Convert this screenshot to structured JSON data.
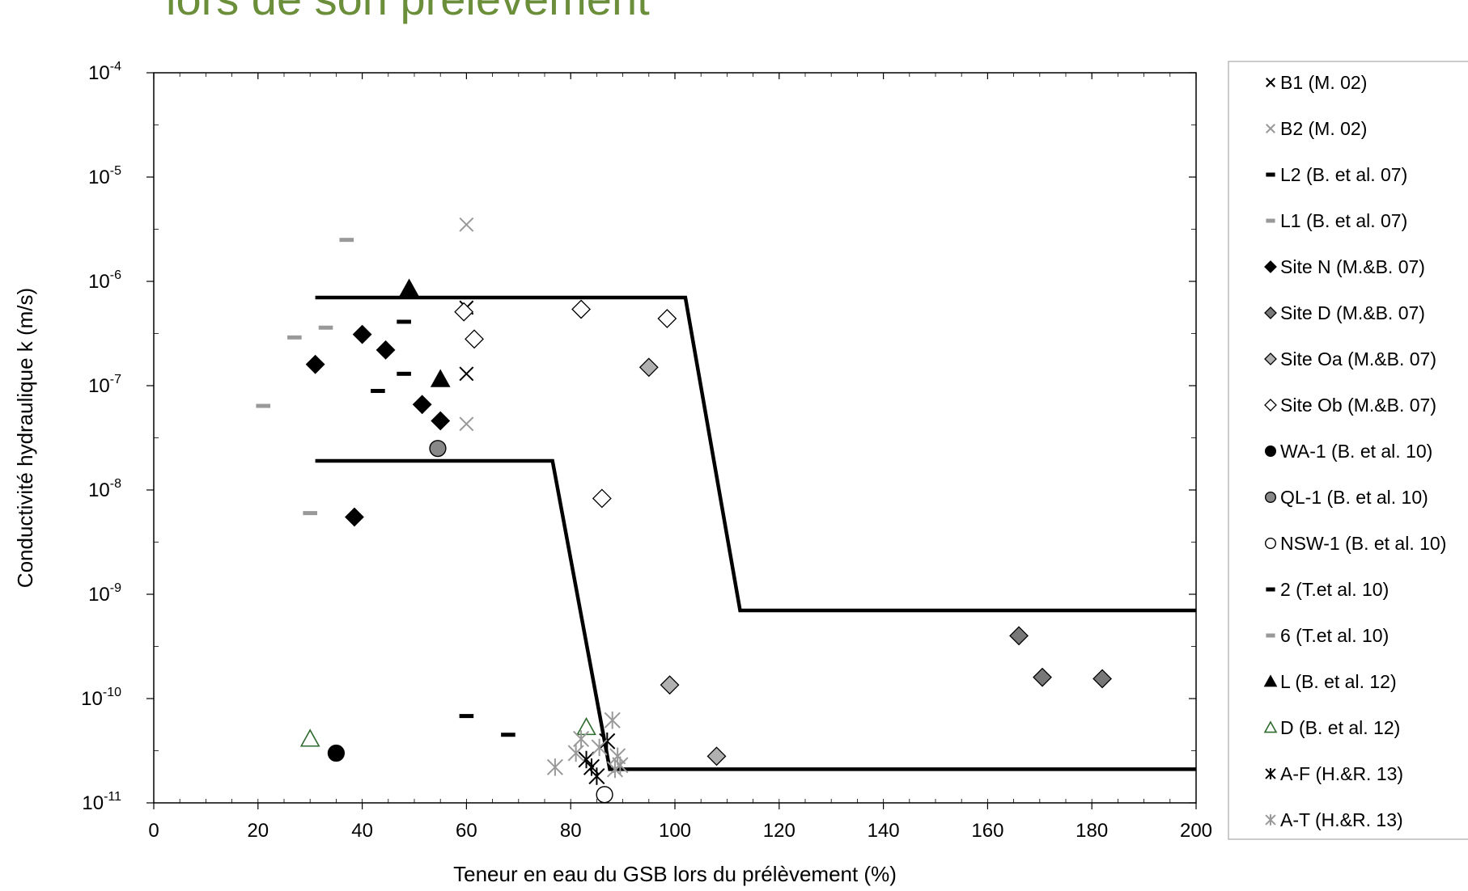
{
  "chart_data": {
    "type": "scatter",
    "title": "lors de son prélèvement",
    "xlabel": "Teneur en eau du GSB lors du prélèvement (%)",
    "ylabel": "Conductivité hydraulique k (m/s)",
    "x_scale": "linear",
    "y_scale": "log",
    "xlim": [
      0,
      200
    ],
    "ylim": [
      1e-11,
      0.0001
    ],
    "x_ticks": [
      "0",
      "20",
      "40",
      "60",
      "80",
      "100",
      "120",
      "140",
      "160",
      "180",
      "200"
    ],
    "y_ticks": [
      {
        "base": "10",
        "exp": "-11",
        "value": 1e-11
      },
      {
        "base": "10",
        "exp": "-10",
        "value": 1e-10
      },
      {
        "base": "10",
        "exp": "-9",
        "value": 1e-09
      },
      {
        "base": "10",
        "exp": "-8",
        "value": 1e-08
      },
      {
        "base": "10",
        "exp": "-7",
        "value": 1e-07
      },
      {
        "base": "10",
        "exp": "-6",
        "value": 1e-06
      },
      {
        "base": "10",
        "exp": "-5",
        "value": 1e-05
      },
      {
        "base": "10",
        "exp": "-4",
        "value": 0.0001
      }
    ],
    "legend_position": "right",
    "series": [
      {
        "name": "B1 (M. 02)",
        "marker": "x",
        "color": "#000000",
        "points": [
          [
            60,
            5.6e-07
          ],
          [
            60,
            1.3e-07
          ]
        ]
      },
      {
        "name": "B2 (M. 02)",
        "marker": "x",
        "color": "#999999",
        "points": [
          [
            60,
            3.5e-06
          ],
          [
            60,
            4.3e-08
          ]
        ]
      },
      {
        "name": "L2 (B. et al. 07)",
        "marker": "dash",
        "color": "#000000",
        "points": [
          [
            48,
            4.1e-07
          ],
          [
            48,
            1.3e-07
          ],
          [
            43,
            8.9e-08
          ],
          [
            60,
            6.8e-11
          ],
          [
            68,
            4.5e-11
          ]
        ]
      },
      {
        "name": "L1 (B. et al. 07)",
        "marker": "dash",
        "color": "#999999",
        "points": [
          [
            37,
            2.5e-06
          ],
          [
            33,
            3.6e-07
          ],
          [
            27,
            2.9e-07
          ],
          [
            21,
            6.4e-08
          ],
          [
            30,
            6e-09
          ]
        ]
      },
      {
        "name": "Site N (M.&B. 07)",
        "marker": "diamond",
        "color": "#000000",
        "points": [
          [
            31,
            1.6e-07
          ],
          [
            40,
            3.1e-07
          ],
          [
            44.5,
            2.2e-07
          ],
          [
            51.5,
            6.6e-08
          ],
          [
            55,
            4.6e-08
          ],
          [
            38.5,
            5.5e-09
          ]
        ]
      },
      {
        "name": "Site D (M.&B. 07)",
        "marker": "diamond",
        "color": "#777777",
        "points": [
          [
            166,
            4e-10
          ],
          [
            170.5,
            1.6e-10
          ],
          [
            182,
            1.55e-10
          ]
        ]
      },
      {
        "name": "Site Oa (M.&B. 07)",
        "marker": "diamond",
        "color": "#b0b0b0",
        "points": [
          [
            95,
            1.5e-07
          ],
          [
            99,
            1.35e-10
          ],
          [
            108,
            2.8e-11
          ]
        ]
      },
      {
        "name": "Site Ob (M.&B. 07)",
        "marker": "diamond",
        "color": "#ffffff",
        "points": [
          [
            59.5,
            5.1e-07
          ],
          [
            61.5,
            2.8e-07
          ],
          [
            82,
            5.4e-07
          ],
          [
            98.5,
            4.4e-07
          ],
          [
            86,
            8.3e-09
          ]
        ]
      },
      {
        "name": "WA-1 (B. et al. 10)",
        "marker": "circle",
        "color": "#000000",
        "points": [
          [
            35,
            3e-11
          ]
        ]
      },
      {
        "name": "QL-1 (B. et al. 10)",
        "marker": "circle",
        "color": "#888888",
        "points": [
          [
            54.5,
            2.5e-08
          ]
        ]
      },
      {
        "name": "NSW-1 (B. et al. 10)",
        "marker": "circle",
        "color": "#ffffff",
        "points": [
          [
            86.5,
            1.2e-11
          ]
        ]
      },
      {
        "name": "2 (T.et al. 10)",
        "marker": "dash",
        "color": "#000000",
        "points": []
      },
      {
        "name": "6 (T.et al. 10)",
        "marker": "dash",
        "color": "#999999",
        "points": []
      },
      {
        "name": "L (B. et al. 12)",
        "marker": "triangle",
        "color": "#000000",
        "points": [
          [
            49,
            8.5e-07
          ],
          [
            55,
            1.15e-07
          ]
        ]
      },
      {
        "name": "D (B. et al. 12)",
        "marker": "triangle",
        "color": "#ffffff",
        "points": [
          [
            30,
            4.1e-11
          ],
          [
            83,
            5.3e-11
          ]
        ]
      },
      {
        "name": "A-F (H.&R. 13)",
        "marker": "asterisk",
        "color": "#000000",
        "points": [
          [
            83,
            2.6e-11
          ],
          [
            84,
            2.2e-11
          ],
          [
            85,
            1.8e-11
          ],
          [
            87,
            3.9e-11
          ]
        ]
      },
      {
        "name": "A-T (H.&R. 13)",
        "marker": "asterisk",
        "color": "#999999",
        "points": [
          [
            77,
            2.2e-11
          ],
          [
            81,
            3e-11
          ],
          [
            82,
            4.1e-11
          ],
          [
            85.5,
            3.4e-11
          ],
          [
            88,
            6.2e-11
          ],
          [
            89,
            2.8e-11
          ],
          [
            89.5,
            2.3e-11
          ],
          [
            88.5,
            2.1e-11
          ]
        ]
      }
    ],
    "boundary_lines": [
      {
        "points": [
          [
            31,
            7e-07
          ],
          [
            102,
            7e-07
          ],
          [
            112.5,
            7e-10
          ],
          [
            200,
            7e-10
          ]
        ]
      },
      {
        "points": [
          [
            31,
            1.9e-08
          ],
          [
            76.5,
            1.9e-08
          ],
          [
            87.5,
            2.1e-11
          ],
          [
            200,
            2.1e-11
          ]
        ]
      }
    ]
  }
}
